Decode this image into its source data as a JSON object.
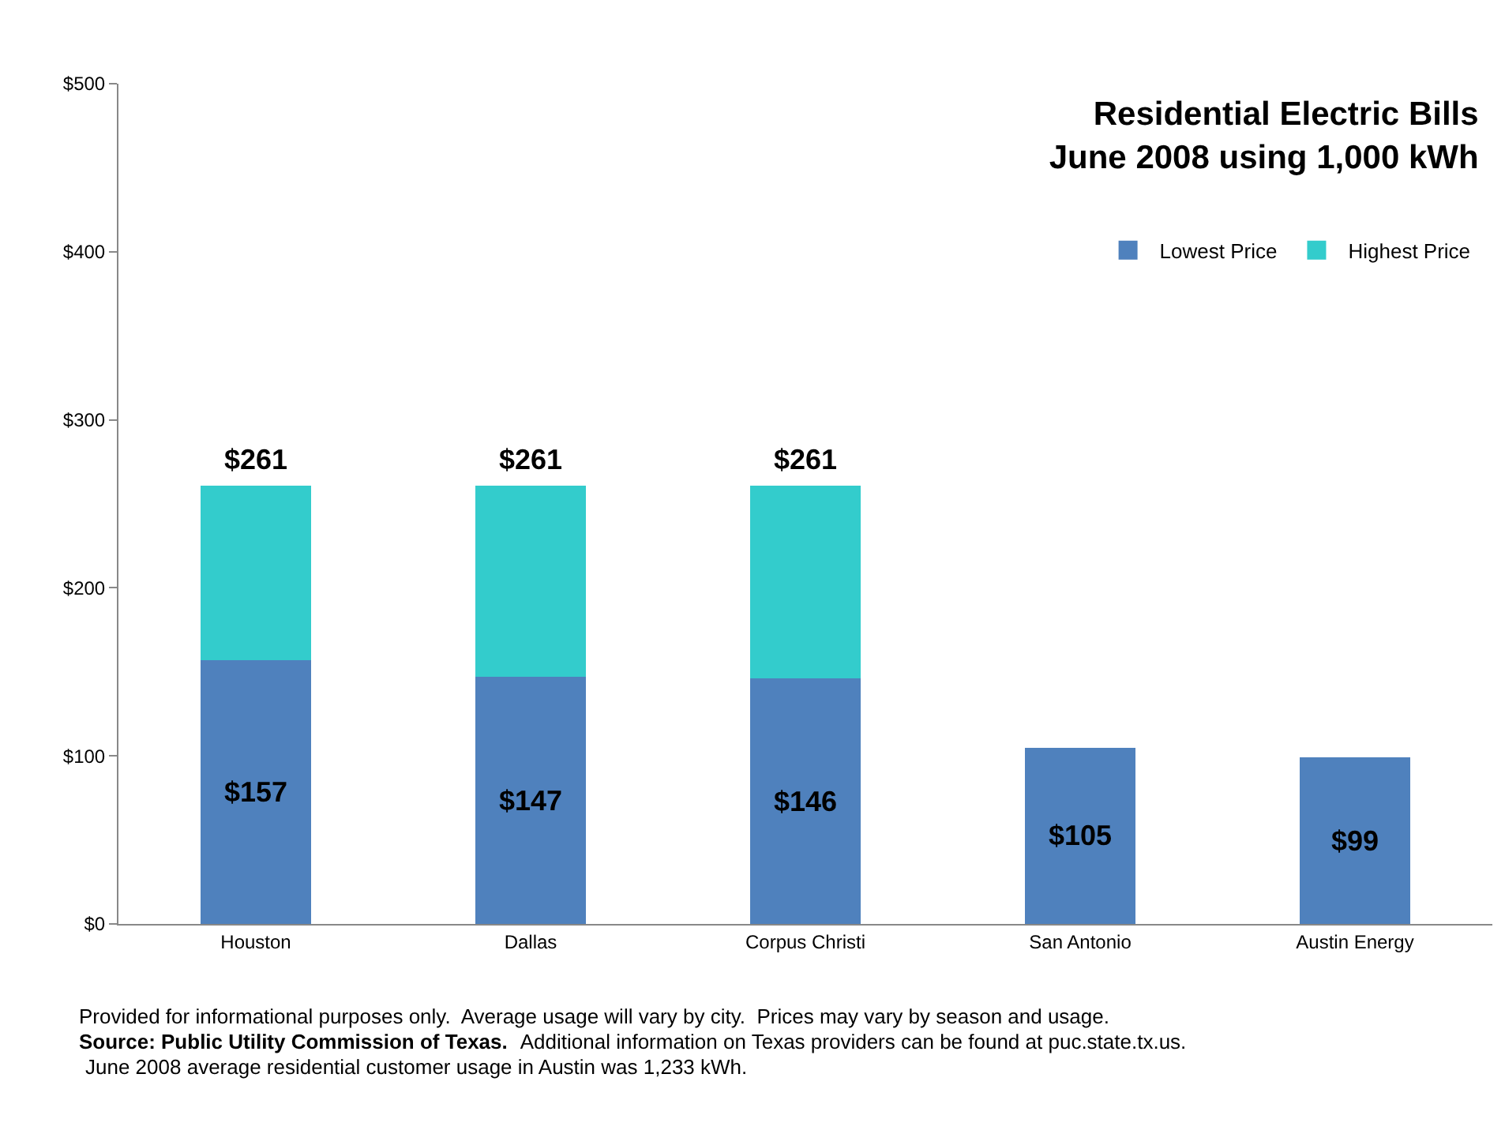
{
  "chart_data": {
    "type": "bar",
    "stacked": true,
    "title": "Residential Electric Bills\nJune 2008 using 1,000 kWh",
    "categories": [
      "Houston",
      "Dallas",
      "Corpus Christi",
      "San Antonio",
      "Austin Energy"
    ],
    "series": [
      {
        "name": "Lowest Price",
        "color": "#4f81bd",
        "values": [
          157,
          147,
          146,
          105,
          99
        ],
        "value_labels": [
          "$157",
          "$147",
          "$146",
          "$105",
          "$99"
        ]
      },
      {
        "name": "Highest Price",
        "color": "#33cccc",
        "values": [
          104,
          114,
          115,
          null,
          null
        ]
      }
    ],
    "totals": [
      "$261",
      "$261",
      "$261",
      null,
      null
    ],
    "ylim": [
      0,
      500
    ],
    "yticks": [
      {
        "value": 0,
        "label": "$0"
      },
      {
        "value": 100,
        "label": "$100"
      },
      {
        "value": 200,
        "label": "$200"
      },
      {
        "value": 300,
        "label": "$300"
      },
      {
        "value": 400,
        "label": "$400"
      },
      {
        "value": 500,
        "label": "$500"
      }
    ],
    "grid": false,
    "legend": "top right",
    "annotations": [
      "Provided for informational purposes only.  Average usage will vary by city.  Prices may vary by season and usage.",
      "Source: Public Utility Commission of Texas.",
      "Additional information on Texas providers can be found at puc.state.tx.us.",
      "June 2008 average residential customer usage in Austin was 1,233 kWh."
    ]
  }
}
